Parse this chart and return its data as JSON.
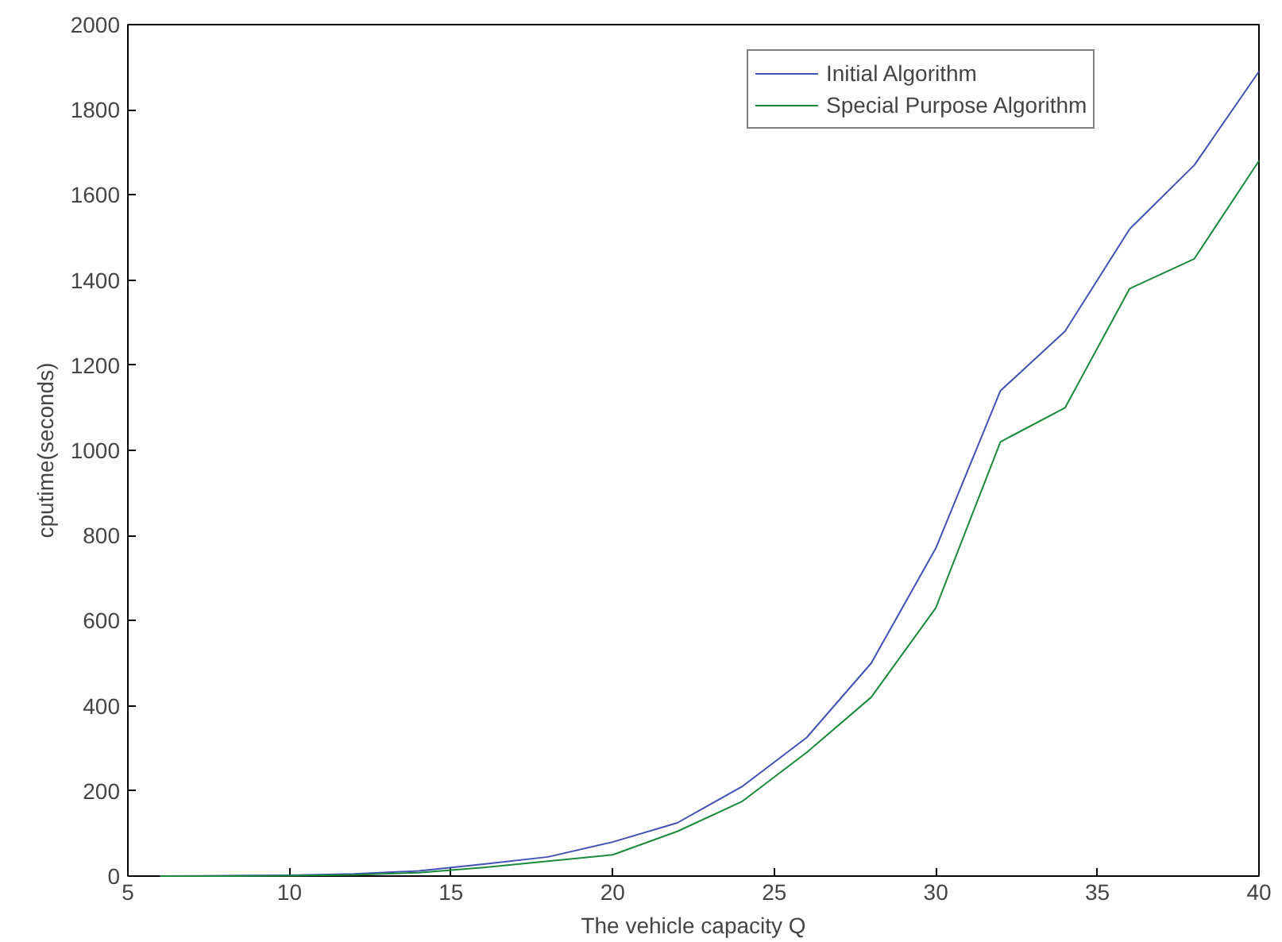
{
  "chart_data": {
    "type": "line",
    "xlabel": "The vehicle capacity Q",
    "ylabel": "cputime(seconds)",
    "x": [
      6,
      8,
      10,
      12,
      14,
      16,
      18,
      20,
      22,
      24,
      26,
      28,
      30,
      32,
      34,
      36,
      38,
      40
    ],
    "series": [
      {
        "name": "Initial Algorithm",
        "color": "#3f51b5",
        "values": [
          0,
          1,
          2,
          5,
          12,
          28,
          45,
          80,
          125,
          210,
          325,
          500,
          770,
          1140,
          1280,
          1520,
          1670,
          1890
        ]
      },
      {
        "name": "Special Purpose Algorithm",
        "color": "#1a8a3a",
        "values": [
          0,
          0,
          1,
          3,
          8,
          20,
          35,
          50,
          105,
          175,
          290,
          420,
          630,
          1020,
          1100,
          1380,
          1450,
          1680
        ]
      }
    ],
    "xlim": [
      5,
      40
    ],
    "ylim": [
      0,
      2000
    ],
    "xticks": [
      5,
      10,
      15,
      20,
      25,
      30,
      35,
      40
    ],
    "yticks": [
      0,
      200,
      400,
      600,
      800,
      1000,
      1200,
      1400,
      1600,
      1800,
      2000
    ],
    "grid": false,
    "legend": "top right",
    "marker": "none",
    "line_style": "solid"
  }
}
